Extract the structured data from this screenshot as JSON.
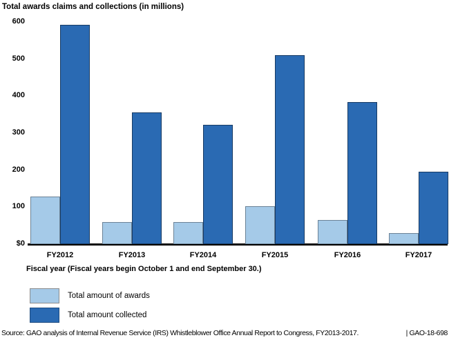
{
  "title": "Total awards claims and collections (in millions)",
  "xlabel_note": "Fiscal year (Fiscal years begin October 1 and end September 30.)",
  "source": {
    "text": "Source: GAO analysis of Internal Revenue Service (IRS) Whistleblower Office Annual Report to Congress, FY2013-2017.",
    "ref": "| GAO-18-698"
  },
  "legend": {
    "items": [
      {
        "label": "Total amount of awards"
      },
      {
        "label": "Total amount collected"
      }
    ]
  },
  "colors": {
    "awards_fill": "#a5cae8",
    "awards_border": "#6b8296",
    "collected_fill": "#2a6ab3",
    "collected_border": "#173a63",
    "axis": "#000000",
    "legend_swatch_border_light": "#8c8c8c",
    "legend_swatch_border_dark": "#1d4b80"
  },
  "chart_data": {
    "type": "bar",
    "title": "Total awards claims and collections (in millions)",
    "xlabel": "Fiscal year (Fiscal years begin October 1 and end September 30.)",
    "ylabel": "",
    "categories": [
      "FY2012",
      "FY2013",
      "FY2014",
      "FY2015",
      "FY2016",
      "FY2017"
    ],
    "series": [
      {
        "name": "Total amount of awards",
        "color": "#a5cae8",
        "border": "#6b8296",
        "values": [
          128,
          60,
          60,
          102,
          66,
          30
        ]
      },
      {
        "name": "Total amount collected",
        "color": "#2a6ab3",
        "border": "#173a63",
        "values": [
          593,
          355,
          322,
          510,
          383,
          195
        ]
      }
    ],
    "ylim": [
      0,
      600
    ],
    "ytick_values": [
      0,
      100,
      200,
      300,
      400,
      500,
      600
    ],
    "ytick_labels": [
      "$0",
      "100",
      "200",
      "300",
      "400",
      "500",
      "600"
    ],
    "grid": false,
    "legend_position": "bottom-left"
  }
}
